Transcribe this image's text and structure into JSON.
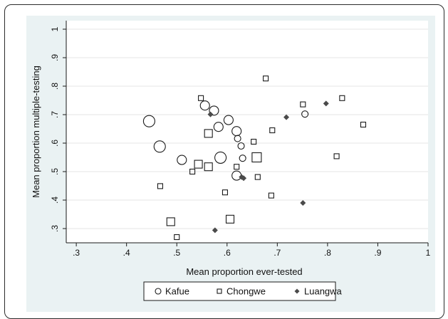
{
  "chart_data": {
    "type": "scatter",
    "title": "",
    "xlabel": "Mean proportion ever-tested",
    "ylabel": "Mean proportion multiple-testing",
    "xlim": [
      0.28,
      1.0
    ],
    "ylim": [
      0.25,
      1.03
    ],
    "x_ticks": [
      0.3,
      0.4,
      0.5,
      0.6,
      0.7,
      0.8,
      0.9,
      1.0
    ],
    "x_tick_labels": [
      ".3",
      ".4",
      ".5",
      ".6",
      ".7",
      ".8",
      ".9",
      "1"
    ],
    "y_ticks": [
      0.3,
      0.4,
      0.5,
      0.6,
      0.7,
      0.8,
      0.9,
      1.0
    ],
    "y_tick_labels": [
      ".3",
      ".4",
      ".5",
      ".6",
      ".7",
      ".8",
      ".9",
      "1"
    ],
    "grid": "horizontal",
    "legend_position": "bottom",
    "background_color": "#eaf2f3",
    "plot_background_color": "#ffffff",
    "series": [
      {
        "name": "Kafue",
        "marker": "hollow-circle",
        "color": "#1a1a1a",
        "points": [
          {
            "x": 0.445,
            "y": 0.677,
            "size": 3
          },
          {
            "x": 0.466,
            "y": 0.588,
            "size": 3
          },
          {
            "x": 0.51,
            "y": 0.541,
            "size": 2
          },
          {
            "x": 0.556,
            "y": 0.732,
            "size": 2
          },
          {
            "x": 0.574,
            "y": 0.714,
            "size": 2
          },
          {
            "x": 0.583,
            "y": 0.657,
            "size": 2
          },
          {
            "x": 0.587,
            "y": 0.549,
            "size": 3
          },
          {
            "x": 0.603,
            "y": 0.681,
            "size": 2
          },
          {
            "x": 0.619,
            "y": 0.642,
            "size": 2
          },
          {
            "x": 0.621,
            "y": 0.616,
            "size": 1
          },
          {
            "x": 0.628,
            "y": 0.59,
            "size": 1
          },
          {
            "x": 0.619,
            "y": 0.486,
            "size": 2
          },
          {
            "x": 0.631,
            "y": 0.547,
            "size": 1
          },
          {
            "x": 0.755,
            "y": 0.702,
            "size": 1
          }
        ]
      },
      {
        "name": "Chongwe",
        "marker": "hollow-square",
        "color": "#1a1a1a",
        "points": [
          {
            "x": 0.467,
            "y": 0.449,
            "size": 1
          },
          {
            "x": 0.488,
            "y": 0.324,
            "size": 2
          },
          {
            "x": 0.5,
            "y": 0.27,
            "size": 1
          },
          {
            "x": 0.531,
            "y": 0.5,
            "size": 1
          },
          {
            "x": 0.543,
            "y": 0.526,
            "size": 2
          },
          {
            "x": 0.548,
            "y": 0.758,
            "size": 1
          },
          {
            "x": 0.563,
            "y": 0.634,
            "size": 2
          },
          {
            "x": 0.563,
            "y": 0.517,
            "size": 2
          },
          {
            "x": 0.596,
            "y": 0.427,
            "size": 1
          },
          {
            "x": 0.606,
            "y": 0.333,
            "size": 2
          },
          {
            "x": 0.619,
            "y": 0.517,
            "size": 1
          },
          {
            "x": 0.653,
            "y": 0.605,
            "size": 1
          },
          {
            "x": 0.659,
            "y": 0.55,
            "size": 3
          },
          {
            "x": 0.661,
            "y": 0.481,
            "size": 1
          },
          {
            "x": 0.677,
            "y": 0.827,
            "size": 1
          },
          {
            "x": 0.688,
            "y": 0.416,
            "size": 1
          },
          {
            "x": 0.69,
            "y": 0.645,
            "size": 1
          },
          {
            "x": 0.751,
            "y": 0.736,
            "size": 1
          },
          {
            "x": 0.818,
            "y": 0.554,
            "size": 1
          },
          {
            "x": 0.829,
            "y": 0.758,
            "size": 1
          },
          {
            "x": 0.871,
            "y": 0.665,
            "size": 1
          }
        ]
      },
      {
        "name": "Luangwa",
        "marker": "filled-diamond",
        "color": "#4a4a4a",
        "points": [
          {
            "x": 0.567,
            "y": 0.701,
            "size": 1
          },
          {
            "x": 0.576,
            "y": 0.294,
            "size": 1
          },
          {
            "x": 0.629,
            "y": 0.481,
            "size": 1
          },
          {
            "x": 0.633,
            "y": 0.477,
            "size": 1
          },
          {
            "x": 0.718,
            "y": 0.691,
            "size": 1
          },
          {
            "x": 0.751,
            "y": 0.39,
            "size": 1
          },
          {
            "x": 0.797,
            "y": 0.739,
            "size": 1
          }
        ]
      }
    ]
  }
}
